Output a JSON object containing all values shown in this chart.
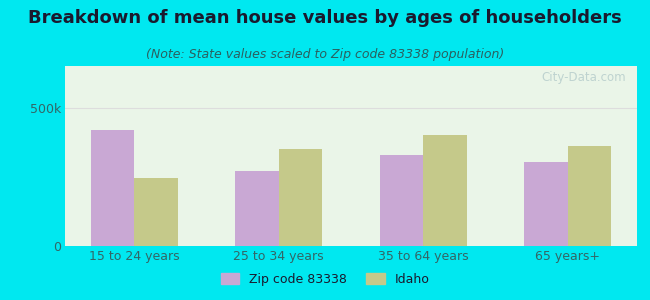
{
  "title": "Breakdown of mean house values by ages of householders",
  "subtitle": "(Note: State values scaled to Zip code 83338 population)",
  "categories": [
    "15 to 24 years",
    "25 to 34 years",
    "35 to 64 years",
    "65 years+"
  ],
  "zip_values": [
    420000,
    270000,
    330000,
    305000
  ],
  "state_values": [
    245000,
    350000,
    400000,
    360000
  ],
  "zip_color": "#c9a8d4",
  "state_color": "#c5c98a",
  "background_outer": "#00e8f0",
  "background_plot_top": "#e0eed8",
  "background_plot_bottom": "#f5faf5",
  "ylim": [
    0,
    650000
  ],
  "yticks": [
    0,
    500000
  ],
  "ytick_labels": [
    "0",
    "500k"
  ],
  "zip_label": "Zip code 83338",
  "state_label": "Idaho",
  "title_fontsize": 13,
  "subtitle_fontsize": 9,
  "bar_width": 0.3,
  "watermark": "City-Data.com"
}
